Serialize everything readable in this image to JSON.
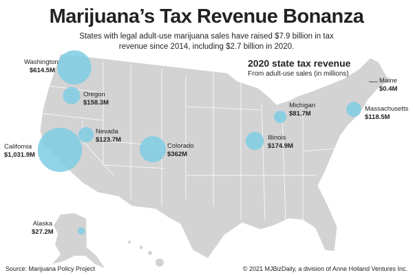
{
  "title": "Marijuana’s Tax Revenue Bonanza",
  "subtitle": "States with legal adult-use marijuana sales have raised $7.9 billion in tax revenue since 2014, including $2.7 billion in 2020.",
  "legend": {
    "title": "2020 state tax revenue",
    "subtitle": "From adult-use sales (in millions)"
  },
  "bubble_color": "#7ecde4",
  "map_color": "#d3d3d3",
  "states": [
    {
      "name": "Washington",
      "value": "$614.5M",
      "amount": 614.5
    },
    {
      "name": "Oregon",
      "value": "$158.3M",
      "amount": 158.3
    },
    {
      "name": "Nevada",
      "value": "$123.7M",
      "amount": 123.7
    },
    {
      "name": "California",
      "value": "$1,031.9M",
      "amount": 1031.9
    },
    {
      "name": "Colorado",
      "value": "$362M",
      "amount": 362
    },
    {
      "name": "Illinois",
      "value": "$174.9M",
      "amount": 174.9
    },
    {
      "name": "Michigan",
      "value": "$81.7M",
      "amount": 81.7
    },
    {
      "name": "Massachusetts",
      "value": "$118.5M",
      "amount": 118.5
    },
    {
      "name": "Maine",
      "value": "$0.4M",
      "amount": 0.4
    },
    {
      "name": "Alaska",
      "value": "$27.2M",
      "amount": 27.2
    }
  ],
  "source": "Source: Marijuana Policy Project",
  "credit": "© 2021 MJBizDaily, a division of Anne Holland Ventures Inc."
}
